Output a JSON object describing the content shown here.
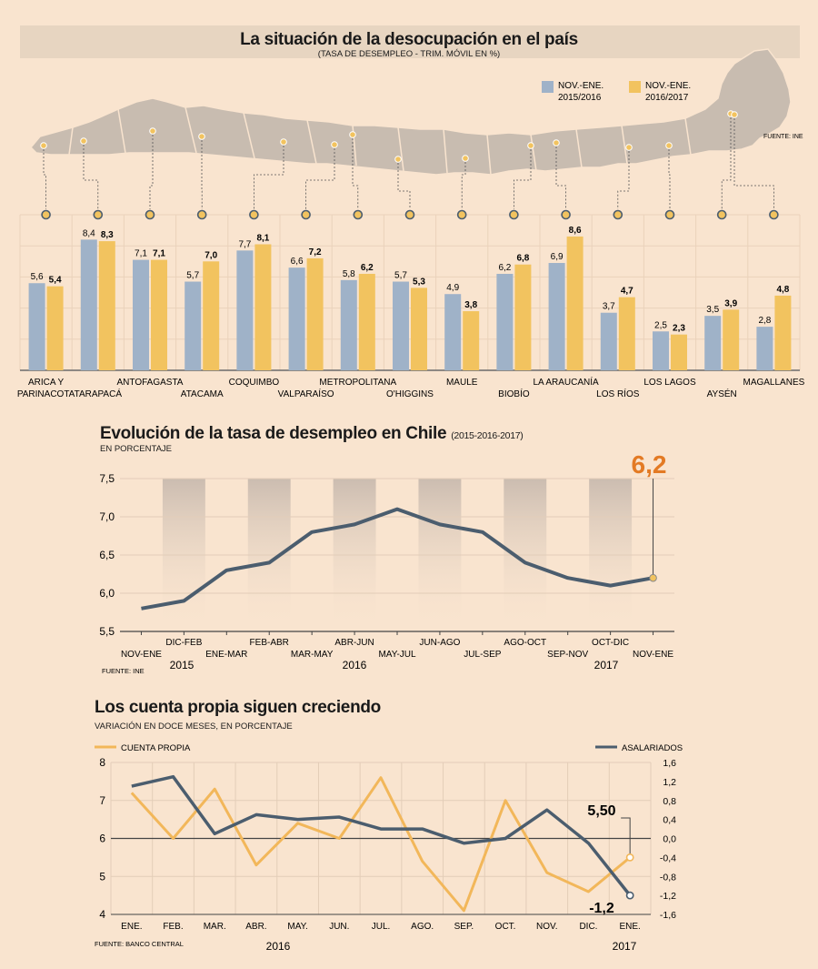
{
  "map_panel": {
    "title": "La situación de la desocupación en el país",
    "subtitle": "(TASA DE DESEMPLEO - TRIM. MÓVIL EN %)",
    "source": "FUENTE: INE",
    "legend": [
      {
        "line1": "NOV.-ENE.",
        "line2": "2015/2016",
        "color": "#9fb2c8"
      },
      {
        "line1": "NOV.-ENE.",
        "line2": "2016/2017",
        "color": "#f2c35f"
      }
    ]
  },
  "trend_panel": {
    "title": "Evolución de la tasa de desempleo en Chile",
    "title_suffix": "(2015-2016-2017)",
    "subtitle": "EN PORCENTAJE",
    "source": "FUENTE: INE",
    "highlight": "6,2",
    "years": [
      "2015",
      "2016",
      "2017"
    ]
  },
  "self_panel": {
    "title": "Los cuenta propia siguen creciendo",
    "subtitle": "VARIACIÓN EN DOCE MESES, EN PORCENTAJE",
    "source": "FUENTE: BANCO CENTRAL",
    "legend_left": "CUENTA PROPIA",
    "legend_right": "ASALARIADOS",
    "callout_top": "5,50",
    "callout_bottom": "-1,2",
    "years": [
      "2016",
      "2017"
    ]
  },
  "chart_data": [
    {
      "type": "bar",
      "categories": [
        "ARICA Y PARINACOTA",
        "TARAPACÁ",
        "ANTOFAGASTA",
        "ATACAMA",
        "COQUIMBO",
        "VALPARAÍSO",
        "METROPOLITANA",
        "O'HIGGINS",
        "MAULE",
        "BIOBÍO",
        "LA ARAUCANÍA",
        "LOS RÍOS",
        "LOS LAGOS",
        "AYSÉN",
        "MAGALLANES"
      ],
      "series": [
        {
          "name": "NOV.-ENE. 2015/2016",
          "values": [
            5.6,
            8.4,
            7.1,
            5.7,
            7.7,
            6.6,
            5.8,
            5.7,
            4.9,
            6.2,
            6.9,
            3.7,
            2.5,
            3.5,
            2.8
          ],
          "labels": [
            "5,6",
            "8,4",
            "7,1",
            "5,7",
            "7,7",
            "6,6",
            "5,8",
            "5,7",
            "4,9",
            "6,2",
            "6,9",
            "3,7",
            "2,5",
            "3,5",
            "2,8"
          ],
          "color": "#9fb2c8"
        },
        {
          "name": "NOV.-ENE. 2016/2017",
          "values": [
            5.4,
            8.3,
            7.1,
            7.0,
            8.1,
            7.2,
            6.2,
            5.3,
            3.8,
            6.8,
            8.6,
            4.7,
            2.3,
            3.9,
            4.8
          ],
          "labels": [
            "5,4",
            "8,3",
            "7,1",
            "7,0",
            "8,1",
            "7,2",
            "6,2",
            "5,3",
            "3,8",
            "6,8",
            "8,6",
            "4,7",
            "2,3",
            "3,9",
            "4,8"
          ],
          "color": "#f2c35f"
        }
      ],
      "ylim": [
        0,
        10
      ],
      "grid": true
    },
    {
      "type": "line",
      "x": [
        "NOV-ENE",
        "DIC-FEB",
        "ENE-MAR",
        "FEB-ABR",
        "MAR-MAY",
        "ABR-JUN",
        "MAY-JUL",
        "JUN-AGO",
        "JUL-SEP",
        "AGO-OCT",
        "SEP-NOV",
        "OCT-DIC",
        "NOV-ENE"
      ],
      "values": [
        5.8,
        5.9,
        6.3,
        6.4,
        6.8,
        6.9,
        7.1,
        6.9,
        6.8,
        6.4,
        6.2,
        6.1,
        6.2
      ],
      "yticks": [
        "5,5",
        "6,0",
        "6,5",
        "7,0",
        "7,5"
      ],
      "ylim": [
        5.5,
        7.5
      ],
      "color": "#4b5d6e"
    },
    {
      "type": "line",
      "x": [
        "ENE.",
        "FEB.",
        "MAR.",
        "ABR.",
        "MAY.",
        "JUN.",
        "JUL.",
        "AGO.",
        "SEP.",
        "OCT.",
        "NOV.",
        "DIC.",
        "ENE."
      ],
      "series": [
        {
          "name": "CUENTA PROPIA",
          "axis": "left",
          "values": [
            7.2,
            6.0,
            7.3,
            5.3,
            6.4,
            6.0,
            7.6,
            5.4,
            4.1,
            7.0,
            5.1,
            4.6,
            5.5
          ],
          "color": "#f2b75a"
        },
        {
          "name": "ASALARIADOS",
          "axis": "right",
          "values": [
            1.1,
            1.3,
            0.1,
            0.5,
            0.4,
            0.45,
            0.2,
            0.2,
            -0.1,
            0.0,
            0.6,
            -0.1,
            -1.2
          ],
          "color": "#4b5d6e"
        }
      ],
      "yleft_ticks": [
        "4",
        "5",
        "6",
        "7",
        "8"
      ],
      "yright_ticks": [
        "-1,6",
        "-1,2",
        "-0,8",
        "-0,4",
        "0,0",
        "0,4",
        "0,8",
        "1,2",
        "1,6"
      ],
      "ylim_left": [
        4,
        8
      ],
      "ylim_right": [
        -1.6,
        1.6
      ]
    }
  ]
}
